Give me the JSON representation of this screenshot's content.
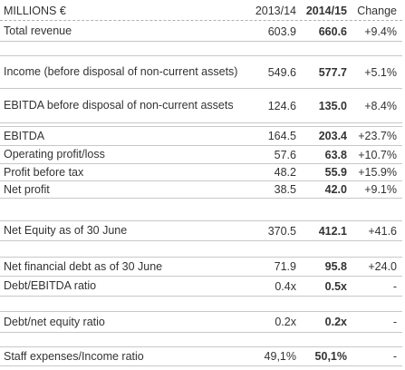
{
  "header": {
    "title": "MILLIONS €",
    "columns": [
      "2013/14",
      "2014/15",
      "Change"
    ]
  },
  "rows": [
    [
      "Total revenue",
      "603.9",
      "660.6",
      "+9.4%"
    ],
    [
      "Income (before disposal of non-current assets)",
      "549.6",
      "577.7",
      "+5.1%"
    ],
    [
      "EBITDA before disposal of non-current assets",
      "124.6",
      "135.0",
      "+8.4%"
    ],
    [
      "EBITDA",
      "164.5",
      "203.4",
      "+23.7%"
    ],
    [
      "Operating profit/loss",
      "57.6",
      "63.8",
      "+10.7%"
    ],
    [
      "Profit before tax",
      "48.2",
      "55.9",
      "+15.9%"
    ],
    [
      "Net profit",
      "38.5",
      "42.0",
      "+9.1%"
    ],
    [
      "Net Equity as of 30 June",
      "370.5",
      "412.1",
      "+41.6"
    ],
    [
      "Net financial debt as of 30 June",
      "71.9",
      "95.8",
      "+24.0"
    ],
    [
      "Debt/EBITDA ratio",
      "0.4x",
      "0.5x",
      "-"
    ],
    [
      "Debt/net equity ratio",
      "0.2x",
      "0.2x",
      "-"
    ],
    [
      "Staff expenses/Income ratio",
      "49,1%",
      "50,1%",
      "-"
    ]
  ]
}
